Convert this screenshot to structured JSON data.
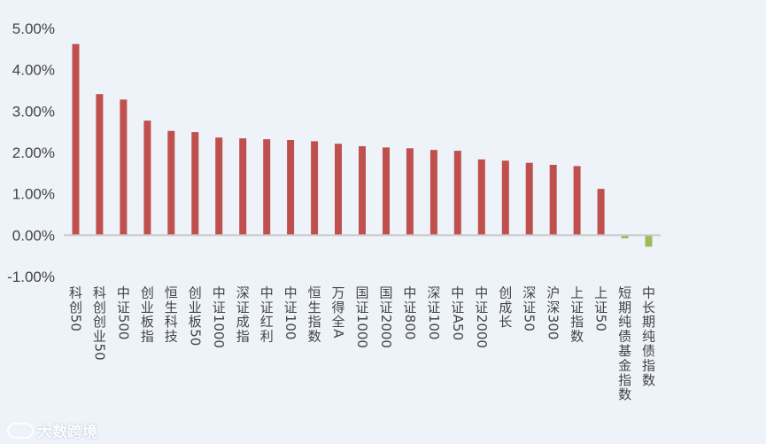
{
  "chart_data": {
    "type": "bar",
    "categories": [
      "科创50",
      "科创创业50",
      "中证500",
      "创业板指",
      "恒生科技",
      "创业板50",
      "中证1000",
      "深证成指",
      "中证红利",
      "中证100",
      "恒生指数",
      "万得全A",
      "国证1000",
      "国证2000",
      "中证800",
      "深证100",
      "中证A50",
      "中证2000",
      "创成长",
      "深证50",
      "沪深300",
      "上证指数",
      "上证50",
      "短期纯债基金指数",
      "中长期纯债指数"
    ],
    "values": [
      4.62,
      3.41,
      3.28,
      2.77,
      2.52,
      2.49,
      2.36,
      2.34,
      2.32,
      2.3,
      2.27,
      2.21,
      2.15,
      2.12,
      2.1,
      2.06,
      2.04,
      1.83,
      1.8,
      1.75,
      1.7,
      1.67,
      1.12,
      -0.08,
      -0.28
    ],
    "ylim": [
      -1.0,
      5.0
    ],
    "yticks": [
      5,
      4,
      3,
      2,
      1,
      0,
      -1
    ],
    "ytick_labels": [
      "5.00%",
      "4.00%",
      "3.00%",
      "2.00%",
      "1.00%",
      "0.00%",
      "-1.00%"
    ],
    "grid": false,
    "colors": {
      "positive": "#c0504d",
      "negative": "#9bbb59",
      "axis": "#c8c8c8"
    }
  },
  "watermark": {
    "text": "大数跨境",
    "logo": "logo-icon"
  }
}
